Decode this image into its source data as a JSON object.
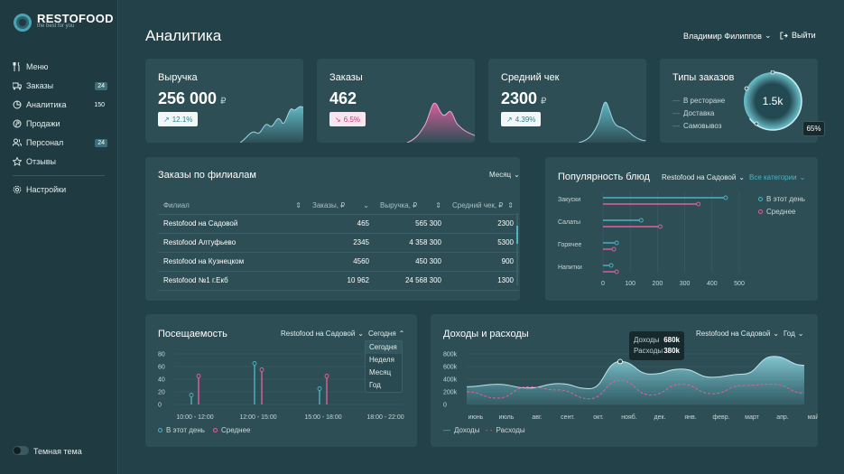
{
  "brand": {
    "name": "RESTOFOOD",
    "tagline": "the best for you"
  },
  "nav": {
    "items": [
      {
        "label": "Меню",
        "badge": ""
      },
      {
        "label": "Заказы",
        "badge": "24"
      },
      {
        "label": "Аналитика",
        "badge": "150"
      },
      {
        "label": "Продажи",
        "badge": ""
      },
      {
        "label": "Персонал",
        "badge": "24"
      },
      {
        "label": "Отзывы",
        "badge": ""
      }
    ],
    "settings": "Настройки",
    "theme": "Темная тема"
  },
  "header": {
    "title": "Аналитика",
    "user": "Владимир Филиппов",
    "logout": "Выйти"
  },
  "kpi": [
    {
      "title": "Выручка",
      "value": "256 000",
      "currency": "₽",
      "change": "12.1%",
      "dir": "up"
    },
    {
      "title": "Заказы",
      "value": "462",
      "currency": "",
      "change": "6.5%",
      "dir": "down"
    },
    {
      "title": "Средний чек",
      "value": "2300",
      "currency": "₽",
      "change": "4.39%",
      "dir": "up"
    }
  ],
  "order_types": {
    "title": "Типы заказов",
    "items": [
      "В ресторане",
      "Доставка",
      "Самовывоз"
    ],
    "total": "1.5k",
    "percent": "65%",
    "percent_value": 65
  },
  "branches": {
    "title": "Заказы по филиалам",
    "period": "Месяц",
    "columns": [
      "Филиал",
      "Заказы, ₽",
      "Выручка, ₽",
      "Средний чек, ₽"
    ],
    "rows": [
      [
        "Restofood на Садовой",
        "465",
        "565 300",
        "2300"
      ],
      [
        "Restofood Алтуфьево",
        "2345",
        "4 358 300",
        "5300"
      ],
      [
        "Restofood на Кузнецком",
        "4560",
        "450 300",
        "900"
      ],
      [
        "Restofood №1 г.Екб",
        "10 962",
        "24 568 300",
        "1300"
      ]
    ]
  },
  "popularity": {
    "title": "Популярность блюд",
    "branch": "Restofood на Садовой",
    "category": "Все категории",
    "legend_today": "В этот день",
    "legend_avg": "Среднее"
  },
  "attendance": {
    "title": "Посещаемость",
    "branch": "Restofood на Садовой",
    "period": "Сегодня",
    "menu": [
      "Сегодня",
      "Неделя",
      "Месяц",
      "Год"
    ],
    "legend_today": "В этот день",
    "legend_avg": "Среднее"
  },
  "finance": {
    "title": "Доходы и расходы",
    "branch": "Restofood на Садовой",
    "period": "Год",
    "tooltip": {
      "income_label": "Доходы",
      "income": "680k",
      "expense_label": "Расходы",
      "expense": "380k"
    },
    "legend_income": "Доходы",
    "legend_expense": "Расходы"
  },
  "chart_data": [
    {
      "type": "bar",
      "title": "Популярность блюд",
      "categories": [
        "Закуски",
        "Салаты",
        "Горячее",
        "Напитки"
      ],
      "series": [
        {
          "name": "В этот день",
          "values": [
            450,
            140,
            50,
            30
          ]
        },
        {
          "name": "Среднее",
          "values": [
            350,
            210,
            40,
            50
          ]
        }
      ],
      "xticks": [
        0,
        100,
        200,
        300,
        400,
        500
      ],
      "xlim": [
        0,
        500
      ]
    },
    {
      "type": "bar",
      "title": "Посещаемость",
      "categories": [
        "10:00 - 12:00",
        "12:00 - 15:00",
        "15:00 - 18:00",
        "18:00 - 22:00"
      ],
      "series": [
        {
          "name": "В этот день",
          "values": [
            15,
            65,
            25,
            0
          ]
        },
        {
          "name": "Среднее",
          "values": [
            45,
            55,
            45,
            0
          ]
        }
      ],
      "yticks": [
        0,
        20,
        40,
        60,
        80
      ],
      "ylim": [
        0,
        80
      ]
    },
    {
      "type": "area",
      "title": "Доходы и расходы",
      "categories": [
        "июнь",
        "июль",
        "авг.",
        "сент.",
        "окт.",
        "нояб.",
        "дек.",
        "янв.",
        "февр.",
        "март",
        "апр.",
        "май"
      ],
      "series": [
        {
          "name": "Доходы",
          "values": [
            280,
            320,
            260,
            330,
            250,
            680,
            480,
            560,
            430,
            480,
            760,
            620
          ]
        },
        {
          "name": "Расходы",
          "values": [
            200,
            100,
            280,
            230,
            90,
            380,
            150,
            320,
            170,
            300,
            320,
            180
          ]
        }
      ],
      "yticks": [
        "0",
        "200k",
        "400k",
        "600k",
        "800k"
      ],
      "ylim": [
        0,
        800
      ]
    }
  ]
}
